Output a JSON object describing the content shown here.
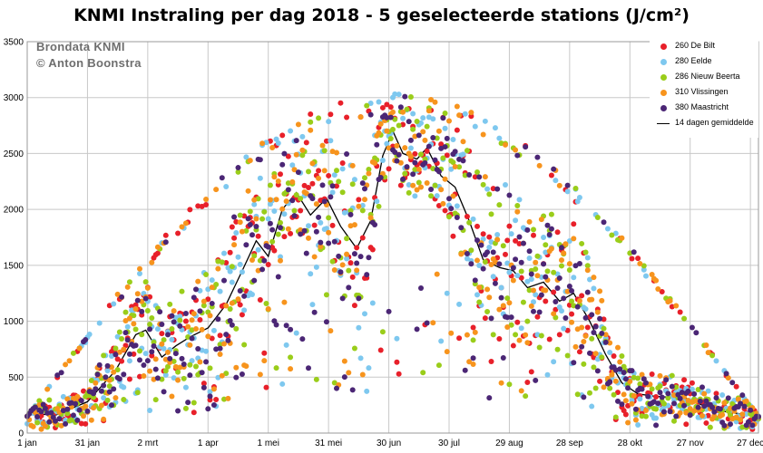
{
  "chart_data": {
    "type": "scatter",
    "title": "KNMI Instraling per dag 2018 - 5 geselecteerde stations (J/cm²)",
    "source_lines": [
      "Brondata KNMI",
      "© Anton Boonstra"
    ],
    "x_tick_labels": [
      "1 jan",
      "31 jan",
      "2 mrt",
      "1 apr",
      "1 mei",
      "31 mei",
      "30 jun",
      "30 jul",
      "29 aug",
      "28 sep",
      "28 okt",
      "27 nov",
      "27 dec"
    ],
    "x_tick_days": [
      1,
      31,
      61,
      91,
      121,
      151,
      181,
      211,
      241,
      271,
      301,
      331,
      361
    ],
    "xlim": [
      1,
      365
    ],
    "y_ticks": [
      0,
      500,
      1000,
      1500,
      2000,
      2500,
      3000,
      3500
    ],
    "ylim": [
      0,
      3500
    ],
    "grid": true,
    "legend_position": "top-right",
    "series": [
      {
        "name": "260 De Bilt",
        "color": "#e8202a"
      },
      {
        "name": "280 Eelde",
        "color": "#7ec8ef"
      },
      {
        "name": "286 Nieuw Beerta",
        "color": "#9acd1a"
      },
      {
        "name": "310 Vlissingen",
        "color": "#f7941d"
      },
      {
        "name": "380 Maastricht",
        "color": "#4b2675"
      }
    ],
    "average_line": {
      "name": "14 dagen gemiddelde",
      "color": "#000000",
      "day": [
        1,
        15,
        31,
        45,
        55,
        60,
        68,
        75,
        82,
        91,
        100,
        108,
        115,
        121,
        128,
        135,
        142,
        150,
        157,
        165,
        172,
        178,
        183,
        188,
        195,
        200,
        207,
        214,
        221,
        228,
        236,
        243,
        250,
        258,
        266,
        273,
        281,
        289,
        297,
        305,
        313,
        321,
        329,
        337,
        345,
        353,
        360,
        365
      ],
      "value": [
        180,
        160,
        280,
        560,
        880,
        920,
        680,
        780,
        860,
        940,
        1150,
        1450,
        1720,
        1580,
        2000,
        2150,
        1950,
        2100,
        1850,
        1650,
        1900,
        2480,
        2700,
        2500,
        2450,
        2550,
        2300,
        2200,
        1900,
        1550,
        1480,
        1450,
        1300,
        1350,
        1180,
        1250,
        1000,
        700,
        450,
        350,
        330,
        320,
        310,
        250,
        200,
        180,
        160,
        150
      ]
    }
  }
}
